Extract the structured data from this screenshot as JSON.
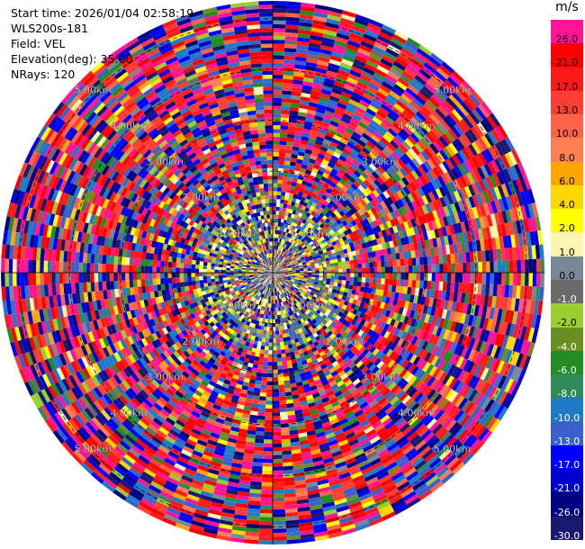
{
  "info": {
    "start_time": "Start time: 2026/01/04 02:58:19",
    "instrument": "WLS200s-181",
    "field": "Field: VEL",
    "elevation": "Elevation(deg): 35.00",
    "nrays": "NRays: 120"
  },
  "colorbar": {
    "unit": "m/s",
    "bins": [
      {
        "label": "26.0",
        "color": "#ff1493",
        "text": "#000000"
      },
      {
        "label": "21.0",
        "color": "#ff0000",
        "text": "#000000"
      },
      {
        "label": "17.0",
        "color": "#ff1a1a",
        "text": "#000000"
      },
      {
        "label": "13.0",
        "color": "#ff3d33",
        "text": "#000000"
      },
      {
        "label": "10.0",
        "color": "#ff6347",
        "text": "#000000"
      },
      {
        "label": "8.0",
        "color": "#ff7f50",
        "text": "#000000"
      },
      {
        "label": "6.0",
        "color": "#ffa500",
        "text": "#000000"
      },
      {
        "label": "4.0",
        "color": "#ffd700",
        "text": "#000000"
      },
      {
        "label": "2.0",
        "color": "#ffff00",
        "text": "#000000"
      },
      {
        "label": "1.0",
        "color": "#fff5b0",
        "text": "#000000"
      },
      {
        "label": "0.0",
        "color": "#778899",
        "text": "#000000"
      },
      {
        "label": "-1.0",
        "color": "#696969",
        "text": "#ffffff"
      },
      {
        "label": "-2.0",
        "color": "#9acd32",
        "text": "#000000"
      },
      {
        "label": "-4.0",
        "color": "#6b8e23",
        "text": "#ffffff"
      },
      {
        "label": "-6.0",
        "color": "#228b22",
        "text": "#ffffff"
      },
      {
        "label": "-8.0",
        "color": "#2e8b57",
        "text": "#ffffff"
      },
      {
        "label": "-10.0",
        "color": "#1e7bc8",
        "text": "#ffffff"
      },
      {
        "label": "-13.0",
        "color": "#3a5fcd",
        "text": "#ffffff"
      },
      {
        "label": "-17.0",
        "color": "#0000ff",
        "text": "#ffffff"
      },
      {
        "label": "-21.0",
        "color": "#0000cd",
        "text": "#ffffff"
      },
      {
        "label": "-26.0",
        "color": "#000080",
        "text": "#ffffff"
      },
      {
        "label": "-30.0",
        "color": "#191970",
        "text": "#ffffff"
      }
    ]
  },
  "chart_data": {
    "type": "heatmap",
    "projection": "polar PPI",
    "field": "VEL",
    "units": "m/s",
    "nrays": 120,
    "elevation_deg": 35.0,
    "range_rings": [
      "1.00km",
      "2.00km",
      "3.00km",
      "4.00km",
      "5.00km"
    ],
    "range_ring_values_km": [
      1,
      2,
      3,
      4,
      5
    ],
    "max_range_km": 5.35,
    "color_scale_bounds_ms": [
      -30,
      -26,
      -21,
      -17,
      -13,
      -10,
      -8,
      -6,
      -4,
      -2,
      -1,
      0,
      1,
      2,
      4,
      6,
      8,
      10,
      13,
      17,
      21,
      26,
      30
    ],
    "gates_per_ray": 70,
    "data_pattern": "noise-dominated velocities across full colour range; higher share of low velocities near the center"
  }
}
